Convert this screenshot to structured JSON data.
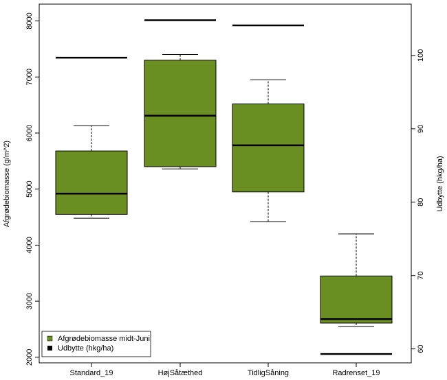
{
  "chart_data": {
    "type": "boxplot",
    "title": "",
    "xlabel": "",
    "ylabel_left": "Afgrødebiomasse (g/m^2)",
    "ylabel_right": "Udbytte (hkg/ha)",
    "categories": [
      "Standard_19",
      "HøjSåtæthed",
      "TidligSåning",
      "Radrenset_19"
    ],
    "ylim_left": [
      1900,
      8300
    ],
    "yticks_left": [
      2000,
      3000,
      4000,
      5000,
      6000,
      7000,
      8000
    ],
    "ylim_right": [
      58.1,
      107
    ],
    "yticks_right": [
      60,
      70,
      80,
      90,
      100
    ],
    "series": [
      {
        "name": "Afgrødebiomasse midt-Juni",
        "axis": "left",
        "color": "#6B8E23",
        "boxes": [
          {
            "category": "Standard_19",
            "min": 4480,
            "q1": 4550,
            "median": 4920,
            "q3": 5680,
            "max": 6130
          },
          {
            "category": "HøjSåtæthed",
            "min": 5360,
            "q1": 5400,
            "median": 6310,
            "q3": 7300,
            "max": 7400
          },
          {
            "category": "TidligSåning",
            "min": 4420,
            "q1": 4950,
            "median": 5780,
            "q3": 6520,
            "max": 6950
          },
          {
            "category": "Radrenset_19",
            "min": 2550,
            "q1": 2610,
            "median": 2680,
            "q3": 3450,
            "max": 4200
          }
        ]
      },
      {
        "name": "Udbytte (hkg/ha)",
        "axis": "right",
        "color": "#000000",
        "values": [
          {
            "category": "Standard_19",
            "value": 99.7
          },
          {
            "category": "HøjSåtæthed",
            "value": 104.8
          },
          {
            "category": "TidligSåning",
            "value": 104.1
          },
          {
            "category": "Radrenset_19",
            "value": 59.3
          }
        ]
      }
    ],
    "legend": {
      "position": "bottom-left"
    }
  }
}
